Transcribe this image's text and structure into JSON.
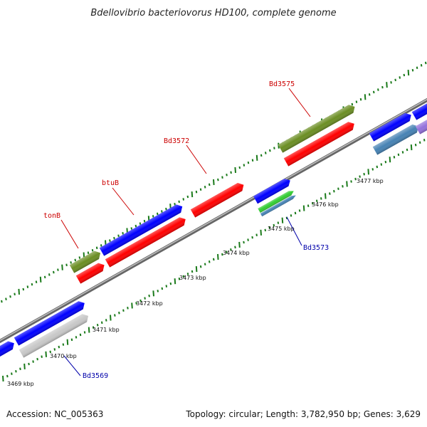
{
  "title": "Bdellovibrio bacteriovorus HD100, complete genome",
  "footer": {
    "accession": "Accession: NC_005363",
    "summary": "Topology: circular; Length: 3,782,950 bp; Genes: 3,629"
  },
  "ruler": [
    "3469 kbp",
    "3470 kbp",
    "3471 kbp",
    "3472 kbp",
    "3473 kbp",
    "3474 kbp",
    "3475 kbp",
    "3476 kbp",
    "3477 kbp"
  ],
  "gene_labels": {
    "tonB": "tonB",
    "btuB": "btuB",
    "bd3572": "Bd3572",
    "bd3575": "Bd3575",
    "bd3573": "Bd3573",
    "bd3569": "Bd3569"
  },
  "colors": {
    "backbone": "#888888",
    "forward_gene": "#ff0000",
    "cds": "#0000ff",
    "olive": "#6b8e23",
    "steel": "#4682b4",
    "green": "#32cd32",
    "grey": "#c8c8c8",
    "purple": "#9370db",
    "tick": "#1a7a1a",
    "label_red": "#cc0000",
    "label_blue": "#0000aa"
  }
}
